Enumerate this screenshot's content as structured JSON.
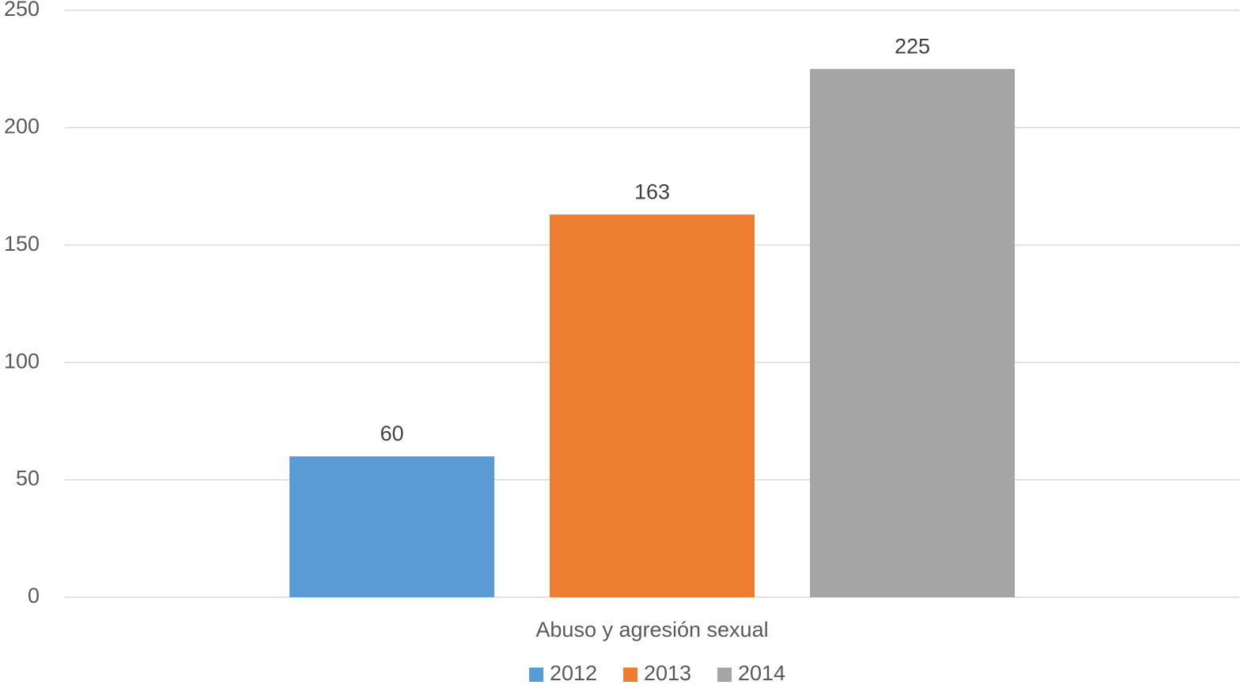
{
  "chart_data": {
    "type": "bar",
    "categories": [
      "Abuso y agresión sexual"
    ],
    "series": [
      {
        "name": "2012",
        "color": "#5b9bd5",
        "values": [
          60
        ]
      },
      {
        "name": "2013",
        "color": "#ed7d31",
        "values": [
          163
        ]
      },
      {
        "name": "2014",
        "color": "#a5a5a5",
        "values": [
          225
        ]
      }
    ],
    "ylim": [
      0,
      250
    ],
    "yticks": [
      0,
      50,
      100,
      150,
      200,
      250
    ],
    "grid": true,
    "legend": "bottom"
  }
}
